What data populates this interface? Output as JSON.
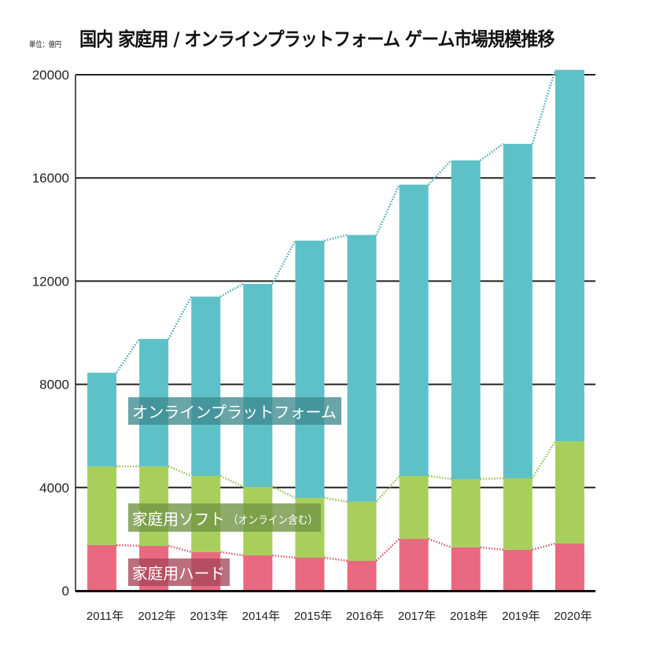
{
  "header": {
    "unit": "単位：億円",
    "title": "国内 家庭用 / オンラインプラットフォーム ゲーム市場規模推移"
  },
  "colors": {
    "online": "#5ec1c7",
    "software": "#a8cf5c",
    "hardware": "#e96a80",
    "online_label_bg": "#3f8a8f",
    "software_label_bg": "#6f9442",
    "hardware_label_bg": "#a8475a",
    "online_dots": "#4aa8b0",
    "software_dots": "#94bb50",
    "hardware_dots": "#d9546c"
  },
  "chart_data": {
    "type": "bar",
    "stacked": true,
    "title": "国内 家庭用 / オンラインプラットフォーム ゲーム市場規模推移",
    "unit": "単位：億円",
    "xlabel": "",
    "ylabel": "",
    "ylim": [
      0,
      20000
    ],
    "yticks": [
      0,
      4000,
      8000,
      12000,
      16000,
      20000
    ],
    "grid": true,
    "categories": [
      "2011年",
      "2012年",
      "2013年",
      "2014年",
      "2015年",
      "2016年",
      "2017年",
      "2018年",
      "2019年",
      "2020年"
    ],
    "series": [
      {
        "name": "家庭用ハード",
        "key": "hardware",
        "values": [
          1770,
          1740,
          1500,
          1370,
          1280,
          1160,
          2010,
          1680,
          1590,
          1830
        ]
      },
      {
        "name": "家庭用ソフト",
        "name_suffix": "（オンライン含む）",
        "key": "software",
        "values": [
          3050,
          3080,
          2950,
          2660,
          2320,
          2290,
          2440,
          2650,
          2770,
          3960
        ]
      },
      {
        "name": "オンラインプラットフォーム",
        "key": "online",
        "values": [
          3630,
          4940,
          6950,
          7860,
          9970,
          10340,
          11290,
          12350,
          12960,
          14400
        ]
      }
    ],
    "totals": [
      8450,
      9760,
      11400,
      11890,
      13570,
      13790,
      15740,
      16680,
      17320,
      20190
    ],
    "connector_lines": "dotted, linking the top of each segment across years"
  }
}
